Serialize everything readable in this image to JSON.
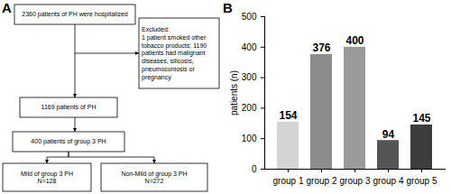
{
  "diagram": {
    "title": "A",
    "nodes": [
      {
        "label": [
          "2360 patients of PH were hospitalized"
        ]
      },
      {
        "label": [
          "Excluded:",
          "1 patient smoked other",
          "tobacco products; 1190",
          "patients had malignant",
          "diseases, silicosis,",
          "pneumoconiosis or",
          "pregnancy"
        ]
      },
      {
        "label": [
          "1169 patients of PH"
        ]
      },
      {
        "label": [
          "400 patients of group 3 PH"
        ]
      },
      {
        "label": [
          "Mild of group 3 PH",
          "N=128"
        ]
      },
      {
        "label": [
          "Non-Mild of group 3 PH",
          "N=272"
        ]
      }
    ],
    "edges": [
      [
        0,
        2
      ],
      [
        0,
        1
      ],
      [
        2,
        3
      ],
      [
        3,
        4
      ],
      [
        3,
        5
      ]
    ]
  },
  "chart_data": {
    "type": "bar",
    "title": "B",
    "categories": [
      "group 1",
      "group 2",
      "group 3",
      "group 4",
      "group 5"
    ],
    "values": [
      154,
      376,
      400,
      94,
      145
    ],
    "colors": [
      "#d4d4d4",
      "#8c8c8c",
      "#9a9a9a",
      "#555555",
      "#3d3d3d"
    ],
    "y_label": "patients (n)",
    "ylim": [
      0,
      500
    ],
    "yticks": [
      0,
      100,
      200,
      300,
      400,
      500
    ],
    "data_labels": true,
    "grid": false
  }
}
